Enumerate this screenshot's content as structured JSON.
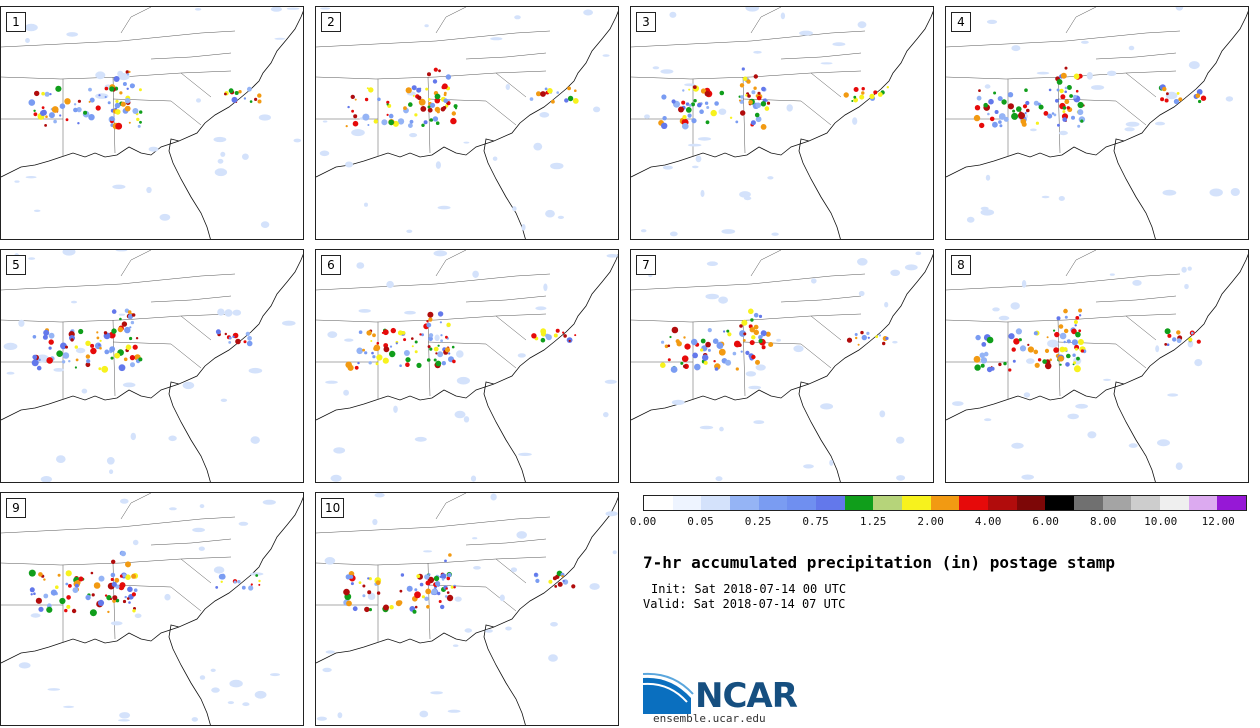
{
  "panels": [
    {
      "label": "1"
    },
    {
      "label": "2"
    },
    {
      "label": "3"
    },
    {
      "label": "4"
    },
    {
      "label": "5"
    },
    {
      "label": "6"
    },
    {
      "label": "7"
    },
    {
      "label": "8"
    },
    {
      "label": "9"
    },
    {
      "label": "10"
    }
  ],
  "legend": {
    "colors": [
      "#ffffff",
      "#eef4ff",
      "#d4e2fb",
      "#95b4f5",
      "#7a9cf2",
      "#6f8ff0",
      "#6378eb",
      "#109e1b",
      "#b6d47a",
      "#f7f21d",
      "#f29a12",
      "#e60a0a",
      "#b10c0c",
      "#7d0707",
      "#000000",
      "#707070",
      "#a4a4a4",
      "#cdcdcd",
      "#efefef",
      "#dcaaf0",
      "#9618d6"
    ],
    "ticks": [
      "0.00",
      "0.05",
      "0.25",
      "0.75",
      "1.25",
      "2.00",
      "4.00",
      "6.00",
      "8.00",
      "10.00",
      "12.00"
    ]
  },
  "title": "7-hr accumulated precipitation (in) postage stamp",
  "init": "Init: Sat 2018-07-14 00 UTC",
  "valid": "Valid: Sat 2018-07-14 07 UTC",
  "logo": {
    "name": "NCAR",
    "url": "ensemble.ucar.edu"
  }
}
